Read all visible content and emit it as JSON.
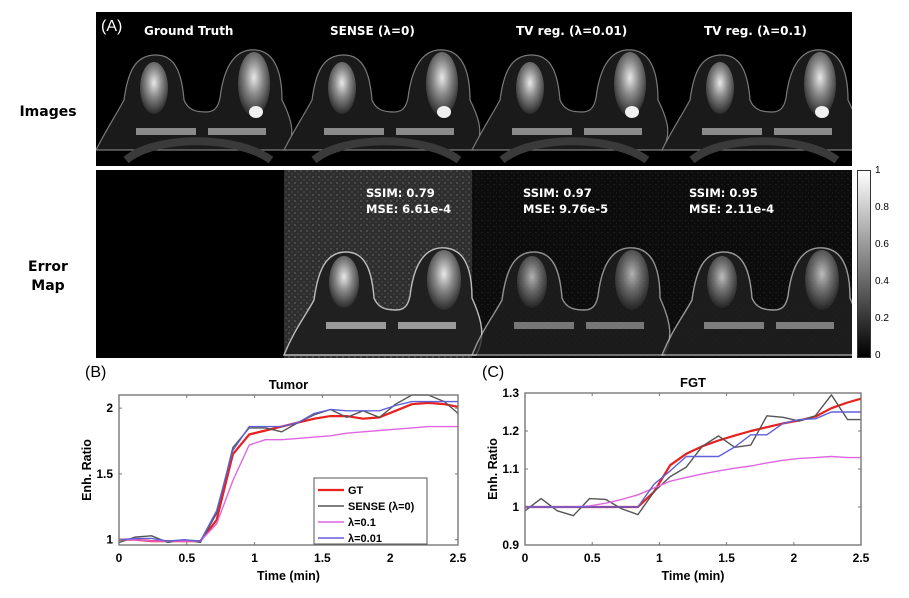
{
  "figure": {
    "panel_a_label": "(A)",
    "panel_b_label": "(B)",
    "panel_c_label": "(C)",
    "row_labels": {
      "images": "Images",
      "error_map_line1": "Error",
      "error_map_line2": "Map"
    },
    "columns": [
      {
        "title": "Ground Truth"
      },
      {
        "title": "SENSE (λ=0)",
        "ssim": "SSIM: 0.79",
        "mse": "MSE: 6.61e-4"
      },
      {
        "title": "TV reg. (λ=0.01)",
        "ssim": "SSIM: 0.97",
        "mse": "MSE: 9.76e-5"
      },
      {
        "title": "TV reg. (λ=0.1)",
        "ssim": "SSIM: 0.95",
        "mse": "MSE: 2.11e-4"
      }
    ],
    "colorbar": {
      "ticks": [
        "1",
        "0.8",
        "0.6",
        "0.4",
        "0.2",
        "0"
      ],
      "range": [
        0,
        1
      ],
      "colormap": "gray"
    }
  },
  "chart_data": [
    {
      "type": "line",
      "title": "Tumor",
      "xlabel": "Time (min)",
      "ylabel": "Enh. Ratio",
      "xlim": [
        0,
        2.5
      ],
      "ylim": [
        0.96,
        2.1
      ],
      "xticks": [
        "0",
        "0.5",
        "1",
        "1.5",
        "2",
        "2.5"
      ],
      "yticks": [
        "1",
        "1.5",
        "2"
      ],
      "grid": false,
      "legend_position": "lower right",
      "x": [
        0,
        0.12,
        0.24,
        0.36,
        0.48,
        0.6,
        0.72,
        0.84,
        0.96,
        1.08,
        1.2,
        1.32,
        1.44,
        1.56,
        1.68,
        1.8,
        1.92,
        2.04,
        2.16,
        2.28,
        2.4,
        2.5
      ],
      "series": [
        {
          "name": "GT",
          "color": "#e8201e",
          "width": 2.2,
          "values": [
            1.0,
            1.0,
            0.99,
            0.99,
            0.99,
            0.99,
            1.15,
            1.65,
            1.8,
            1.83,
            1.86,
            1.89,
            1.92,
            1.94,
            1.94,
            1.92,
            1.93,
            1.98,
            2.03,
            2.04,
            2.03,
            2.01
          ]
        },
        {
          "name": "SENSE (λ=0)",
          "color": "#555555",
          "width": 1.4,
          "values": [
            0.98,
            1.02,
            1.03,
            0.98,
            1.0,
            0.98,
            1.2,
            1.7,
            1.85,
            1.85,
            1.82,
            1.89,
            1.95,
            1.99,
            1.93,
            1.98,
            1.93,
            2.03,
            2.1,
            2.1,
            2.05,
            1.96
          ]
        },
        {
          "name": "λ=0.1",
          "color": "#e066e0",
          "width": 1.4,
          "values": [
            1.0,
            1.0,
            0.99,
            0.99,
            0.99,
            0.99,
            1.12,
            1.45,
            1.72,
            1.76,
            1.76,
            1.77,
            1.78,
            1.79,
            1.81,
            1.82,
            1.83,
            1.84,
            1.85,
            1.86,
            1.86,
            1.86
          ]
        },
        {
          "name": "λ=0.01",
          "color": "#6060d8",
          "width": 1.4,
          "values": [
            1.0,
            1.01,
            1.01,
            0.99,
            1.0,
            0.99,
            1.22,
            1.68,
            1.86,
            1.86,
            1.86,
            1.89,
            1.96,
            1.99,
            1.98,
            1.98,
            1.98,
            2.02,
            2.05,
            2.05,
            2.05,
            2.05
          ]
        }
      ]
    },
    {
      "type": "line",
      "title": "FGT",
      "xlabel": "Time (min)",
      "ylabel": "Enh. Ratio",
      "xlim": [
        0,
        2.5
      ],
      "ylim": [
        0.9,
        1.3
      ],
      "xticks": [
        "0",
        "0.5",
        "1",
        "1.5",
        "2",
        "2.5"
      ],
      "yticks": [
        "0.9",
        "1",
        "1.1",
        "1.2",
        "1.3"
      ],
      "grid": false,
      "x": [
        0,
        0.12,
        0.24,
        0.36,
        0.48,
        0.6,
        0.72,
        0.84,
        0.96,
        1.08,
        1.2,
        1.32,
        1.44,
        1.56,
        1.68,
        1.8,
        1.92,
        2.04,
        2.16,
        2.28,
        2.4,
        2.5
      ],
      "series": [
        {
          "name": "GT",
          "color": "#e8201e",
          "width": 2.2,
          "values": [
            1.0,
            1.0,
            1.0,
            1.0,
            1.0,
            1.0,
            1.0,
            1.0,
            1.04,
            1.11,
            1.14,
            1.16,
            1.175,
            1.188,
            1.2,
            1.21,
            1.22,
            1.228,
            1.238,
            1.26,
            1.275,
            1.285
          ]
        },
        {
          "name": "SENSE (λ=0)",
          "color": "#555555",
          "width": 1.4,
          "values": [
            0.99,
            1.022,
            0.99,
            0.977,
            1.022,
            1.02,
            0.995,
            0.98,
            1.04,
            1.08,
            1.105,
            1.16,
            1.187,
            1.157,
            1.163,
            1.24,
            1.236,
            1.226,
            1.24,
            1.295,
            1.23,
            1.23
          ]
        },
        {
          "name": "λ=0.1",
          "color": "#e066e0",
          "width": 1.4,
          "values": [
            1.0,
            1.0,
            1.0,
            1.0,
            1.003,
            1.01,
            1.02,
            1.032,
            1.05,
            1.068,
            1.078,
            1.087,
            1.095,
            1.102,
            1.108,
            1.116,
            1.123,
            1.128,
            1.13,
            1.133,
            1.13,
            1.13
          ]
        },
        {
          "name": "λ=0.01",
          "color": "#6060d8",
          "width": 1.4,
          "values": [
            1.0,
            1.0,
            1.0,
            1.0,
            1.0,
            1.0,
            1.0,
            1.0,
            1.06,
            1.095,
            1.133,
            1.133,
            1.133,
            1.158,
            1.19,
            1.19,
            1.22,
            1.23,
            1.232,
            1.25,
            1.25,
            1.25
          ]
        }
      ]
    }
  ]
}
